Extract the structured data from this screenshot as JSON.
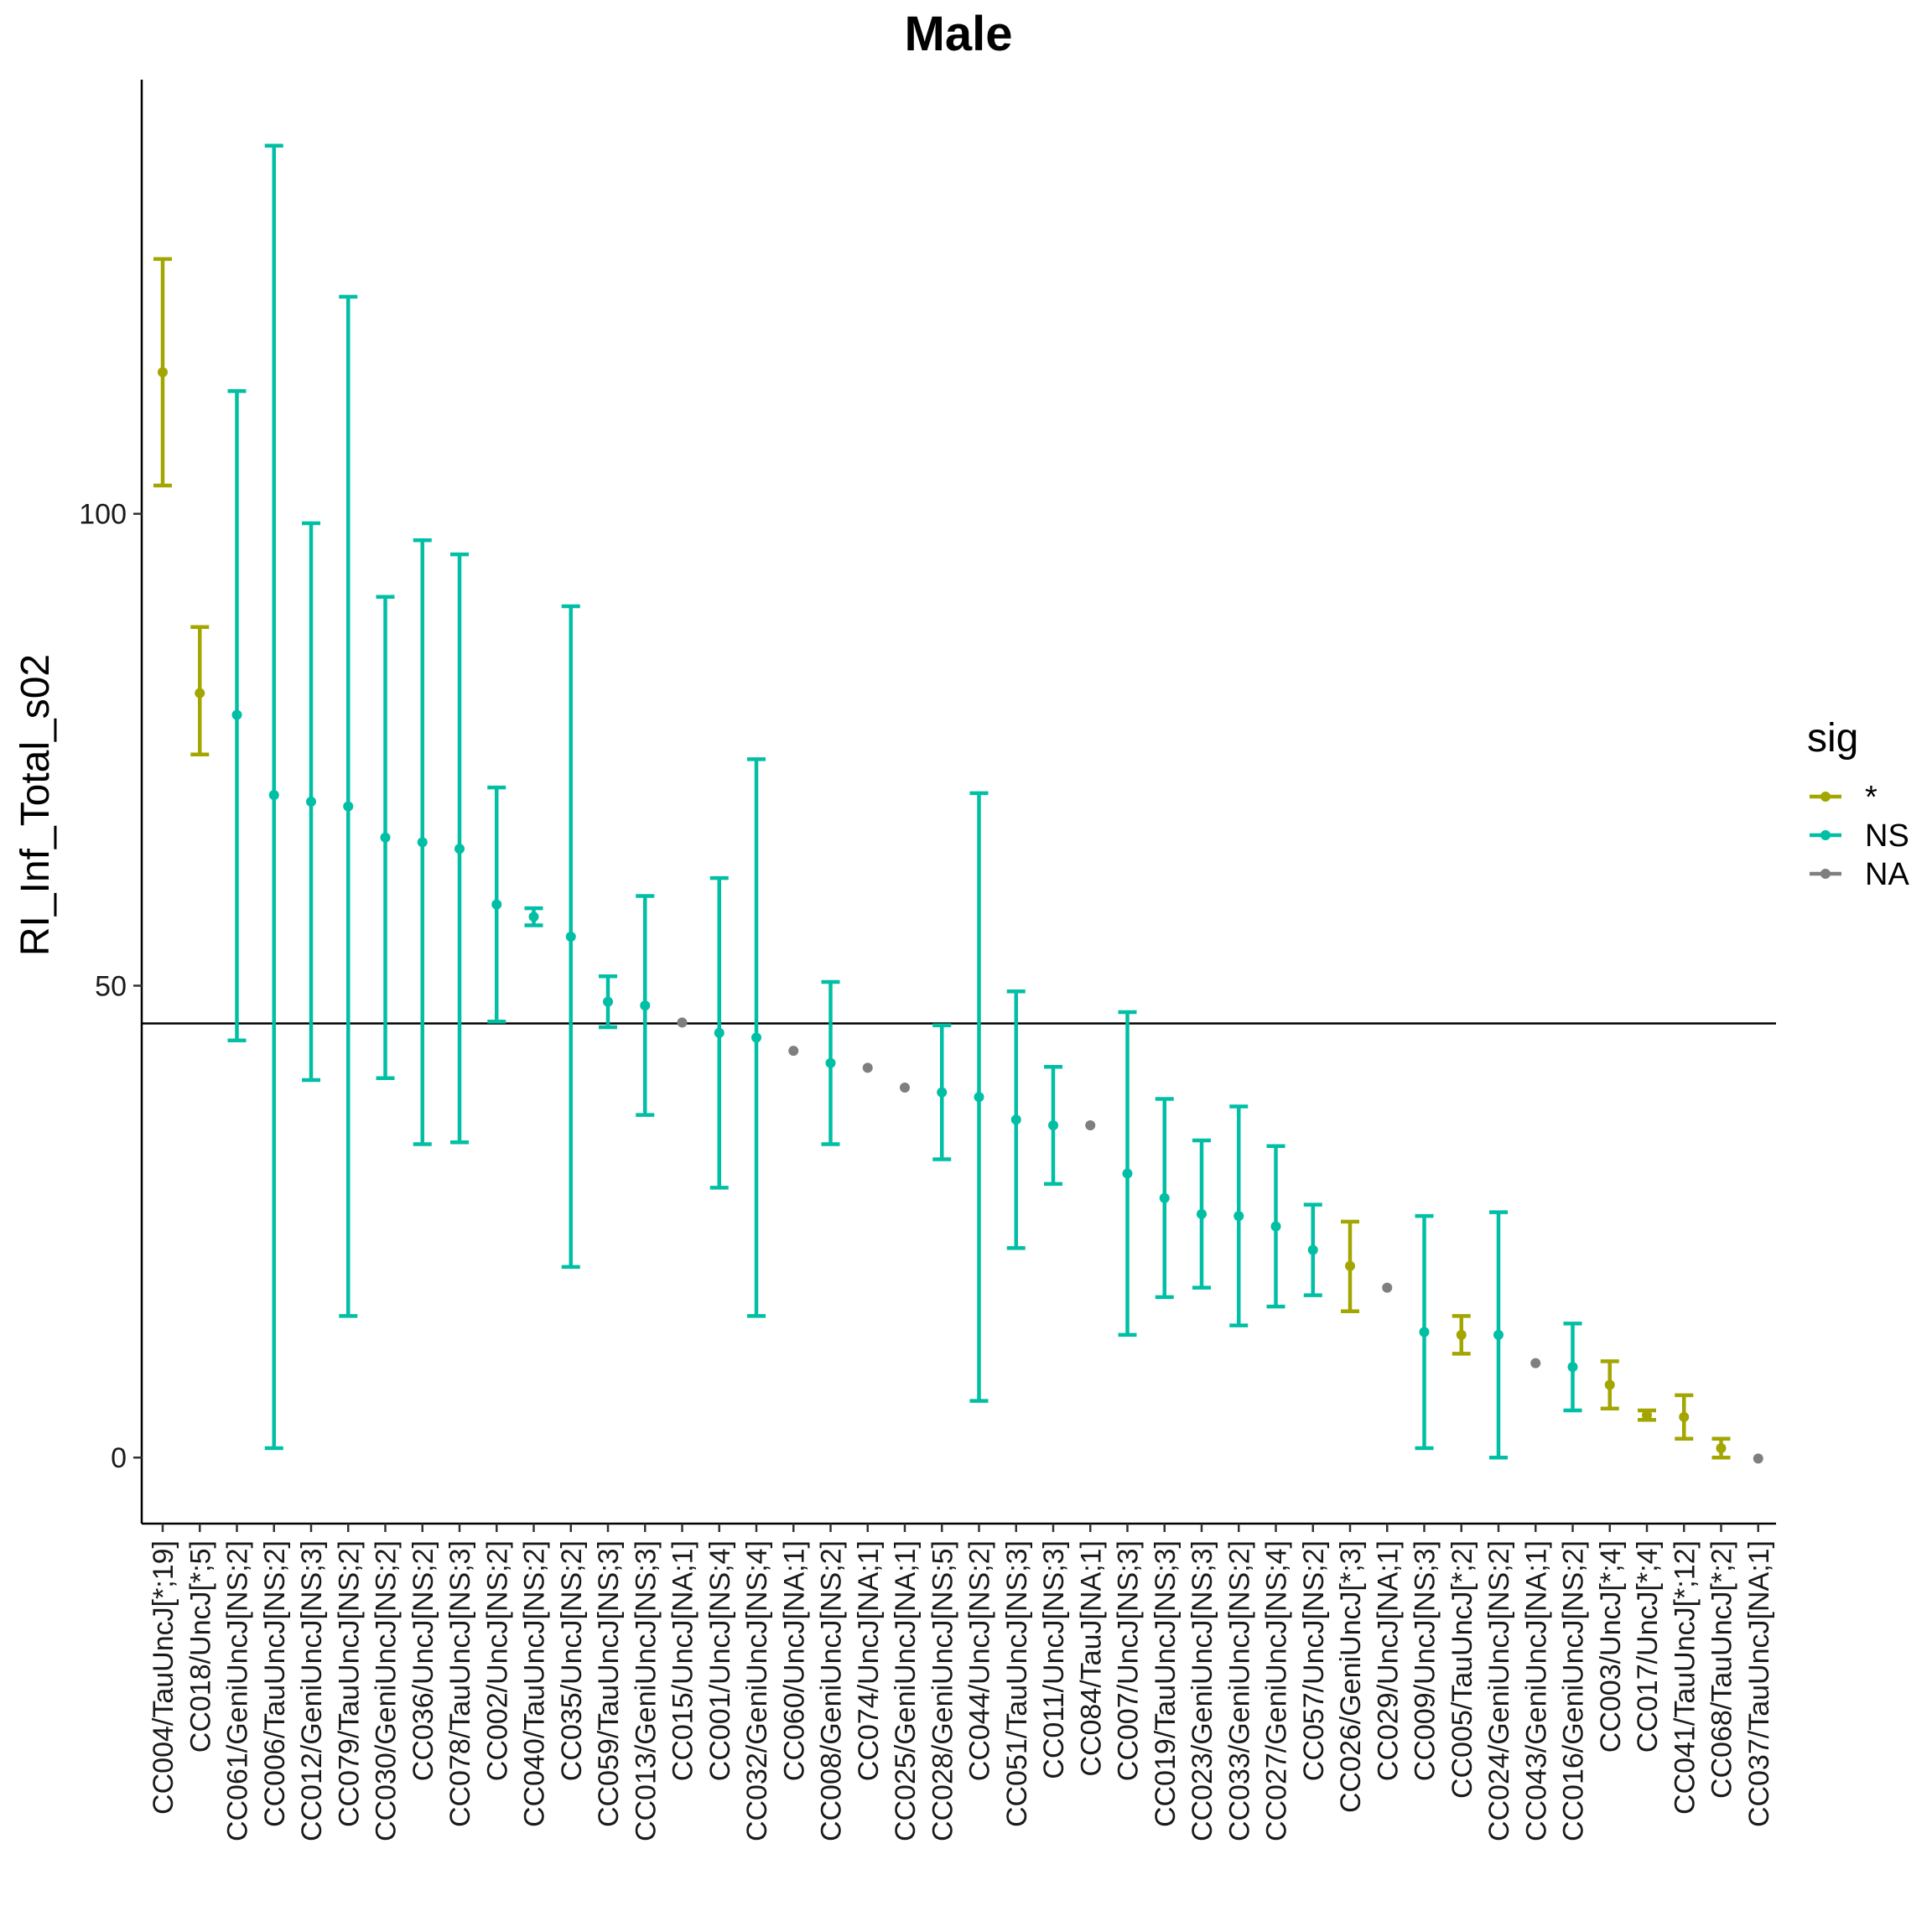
{
  "chart_data": {
    "type": "scatter",
    "title": "Male",
    "xlabel": "",
    "ylabel": "RI_Inf_Total_s02",
    "ylim": [
      -7,
      146
    ],
    "yticks": [
      0,
      50,
      100
    ],
    "reference_line_y": 46,
    "grid": false,
    "legend": {
      "title": "sig",
      "placement": "right",
      "entries": [
        {
          "label": "*",
          "color": "#a3a500"
        },
        {
          "label": "NS",
          "color": "#00bfa4"
        },
        {
          "label": "NA",
          "color": "#7f7f7f"
        }
      ]
    },
    "categories": [
      "CC004/TauUncJ[*;19]",
      "CC018/UncJ[*;5]",
      "CC061/GeniUncJ[NS;2]",
      "CC006/TauUncJ[NS;2]",
      "CC012/GeniUncJ[NS;3]",
      "CC079/TauUncJ[NS;2]",
      "CC030/GeniUncJ[NS;2]",
      "CC036/UncJ[NS;2]",
      "CC078/TauUncJ[NS;3]",
      "CC002/UncJ[NS;2]",
      "CC040/TauUncJ[NS;2]",
      "CC035/UncJ[NS;2]",
      "CC059/TauUncJ[NS;3]",
      "CC013/GeniUncJ[NS;3]",
      "CC015/UncJ[NA;1]",
      "CC001/UncJ[NS;4]",
      "CC032/GeniUncJ[NS;4]",
      "CC060/UncJ[NA;1]",
      "CC008/GeniUncJ[NS;2]",
      "CC074/UncJ[NA;1]",
      "CC025/GeniUncJ[NA;1]",
      "CC028/GeniUncJ[NS;5]",
      "CC044/UncJ[NS;2]",
      "CC051/TauUncJ[NS;3]",
      "CC011/UncJ[NS;3]",
      "CC084/TauJ[NA;1]",
      "CC007/UncJ[NS;3]",
      "CC019/TauUncJ[NS;3]",
      "CC023/GeniUncJ[NS;3]",
      "CC033/GeniUncJ[NS;2]",
      "CC027/GeniUncJ[NS;4]",
      "CC057/UncJ[NS;2]",
      "CC026/GeniUncJ[*;3]",
      "CC029/UncJ[NA;1]",
      "CC009/UncJ[NS;3]",
      "CC005/TauUncJ[*;2]",
      "CC024/GeniUncJ[NS;2]",
      "CC043/GeniUncJ[NA;1]",
      "CC016/GeniUncJ[NS;2]",
      "CC003/UncJ[*;4]",
      "CC017/UncJ[*;4]",
      "CC041/TauUncJ[*;12]",
      "CC068/TauUncJ[*;2]",
      "CC037/TauUncJ[NA;1]"
    ],
    "points": [
      {
        "y": 115,
        "lo": 103,
        "hi": 127,
        "sig": "*"
      },
      {
        "y": 81,
        "lo": 74.5,
        "hi": 88,
        "sig": "*"
      },
      {
        "y": 78.7,
        "lo": 44.2,
        "hi": 113,
        "sig": "NS"
      },
      {
        "y": 70.2,
        "lo": 1,
        "hi": 139,
        "sig": "NS"
      },
      {
        "y": 69.5,
        "lo": 40,
        "hi": 99,
        "sig": "NS"
      },
      {
        "y": 69,
        "lo": 15,
        "hi": 123,
        "sig": "NS"
      },
      {
        "y": 65.7,
        "lo": 40.2,
        "hi": 91.2,
        "sig": "NS"
      },
      {
        "y": 65.2,
        "lo": 33.2,
        "hi": 97.2,
        "sig": "NS"
      },
      {
        "y": 64.5,
        "lo": 33.4,
        "hi": 95.7,
        "sig": "NS"
      },
      {
        "y": 58.6,
        "lo": 46.2,
        "hi": 71,
        "sig": "NS"
      },
      {
        "y": 57.3,
        "lo": 56.4,
        "hi": 58.2,
        "sig": "NS"
      },
      {
        "y": 55.2,
        "lo": 20.2,
        "hi": 90.2,
        "sig": "NS"
      },
      {
        "y": 48.3,
        "lo": 45.6,
        "hi": 51,
        "sig": "NS"
      },
      {
        "y": 47.9,
        "lo": 36.3,
        "hi": 59.5,
        "sig": "NS"
      },
      {
        "y": 46.1,
        "lo": null,
        "hi": null,
        "sig": "NA"
      },
      {
        "y": 45,
        "lo": 28.6,
        "hi": 61.4,
        "sig": "NS"
      },
      {
        "y": 44.5,
        "lo": 15,
        "hi": 74,
        "sig": "NS"
      },
      {
        "y": 43.1,
        "lo": null,
        "hi": null,
        "sig": "NA"
      },
      {
        "y": 41.8,
        "lo": 33.2,
        "hi": 50.4,
        "sig": "NS"
      },
      {
        "y": 41.3,
        "lo": null,
        "hi": null,
        "sig": "NA"
      },
      {
        "y": 39.2,
        "lo": null,
        "hi": null,
        "sig": "NA"
      },
      {
        "y": 38.7,
        "lo": 31.6,
        "hi": 45.8,
        "sig": "NS"
      },
      {
        "y": 38.2,
        "lo": 6,
        "hi": 70.4,
        "sig": "NS"
      },
      {
        "y": 35.8,
        "lo": 22.2,
        "hi": 49.4,
        "sig": "NS"
      },
      {
        "y": 35.2,
        "lo": 29,
        "hi": 41.4,
        "sig": "NS"
      },
      {
        "y": 35.2,
        "lo": null,
        "hi": null,
        "sig": "NA"
      },
      {
        "y": 30.1,
        "lo": 13,
        "hi": 47.2,
        "sig": "NS"
      },
      {
        "y": 27.5,
        "lo": 17,
        "hi": 38,
        "sig": "NS"
      },
      {
        "y": 25.8,
        "lo": 18,
        "hi": 33.6,
        "sig": "NS"
      },
      {
        "y": 25.6,
        "lo": 14,
        "hi": 37.2,
        "sig": "NS"
      },
      {
        "y": 24.5,
        "lo": 16,
        "hi": 33,
        "sig": "NS"
      },
      {
        "y": 22,
        "lo": 17.2,
        "hi": 26.8,
        "sig": "NS"
      },
      {
        "y": 20.3,
        "lo": 15.5,
        "hi": 25,
        "sig": "*"
      },
      {
        "y": 18,
        "lo": null,
        "hi": null,
        "sig": "NA"
      },
      {
        "y": 13.3,
        "lo": 1,
        "hi": 25.6,
        "sig": "NS"
      },
      {
        "y": 13,
        "lo": 11,
        "hi": 15,
        "sig": "*"
      },
      {
        "y": 13,
        "lo": 0,
        "hi": 26,
        "sig": "NS"
      },
      {
        "y": 10,
        "lo": null,
        "hi": null,
        "sig": "NA"
      },
      {
        "y": 9.6,
        "lo": 5,
        "hi": 14.2,
        "sig": "NS"
      },
      {
        "y": 7.7,
        "lo": 5.2,
        "hi": 10.2,
        "sig": "*"
      },
      {
        "y": 4.5,
        "lo": 4,
        "hi": 5,
        "sig": "*"
      },
      {
        "y": 4.3,
        "lo": 2,
        "hi": 6.6,
        "sig": "*"
      },
      {
        "y": 1,
        "lo": 0,
        "hi": 2,
        "sig": "*"
      },
      {
        "y": -0.1,
        "lo": null,
        "hi": null,
        "sig": "NA"
      }
    ]
  }
}
